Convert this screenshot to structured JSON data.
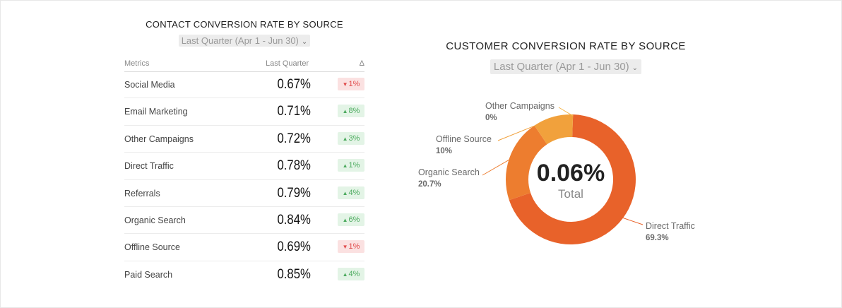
{
  "left": {
    "title": "CONTACT CONVERSION RATE BY SOURCE",
    "period": "Last Quarter (Apr 1 - Jun 30)",
    "columns": {
      "metric": "Metrics",
      "last": "Last Quarter",
      "delta": "Δ"
    },
    "rows": [
      {
        "label": "Social Media",
        "value": "0.67%",
        "delta": "1%",
        "dir": "down"
      },
      {
        "label": "Email Marketing",
        "value": "0.71%",
        "delta": "8%",
        "dir": "up"
      },
      {
        "label": "Other Campaigns",
        "value": "0.72%",
        "delta": "3%",
        "dir": "up"
      },
      {
        "label": "Direct Traffic",
        "value": "0.78%",
        "delta": "1%",
        "dir": "up"
      },
      {
        "label": "Referrals",
        "value": "0.79%",
        "delta": "4%",
        "dir": "up"
      },
      {
        "label": "Organic Search",
        "value": "0.84%",
        "delta": "6%",
        "dir": "up"
      },
      {
        "label": "Offline Source",
        "value": "0.69%",
        "delta": "1%",
        "dir": "down"
      },
      {
        "label": "Paid Search",
        "value": "0.85%",
        "delta": "4%",
        "dir": "up"
      }
    ],
    "arrow_up": "▲",
    "arrow_down": "▼"
  },
  "right": {
    "title": "CUSTOMER CONVERSION RATE BY SOURCE",
    "period": "Last Quarter (Apr 1 - Jun 30)",
    "center_value": "0.06%",
    "center_label": "Total"
  },
  "chevron_icon": "chevron-down-icon",
  "colors": {
    "up_bg": "#e3f4e6",
    "up_fg": "#4caa5e",
    "down_bg": "#fbe1e1",
    "down_fg": "#e04a4a"
  },
  "chart_data": {
    "type": "pie",
    "variant": "donut",
    "title": "CUSTOMER CONVERSION RATE BY SOURCE",
    "slices": [
      {
        "label": "Direct Traffic",
        "pct_label": "69.3%",
        "value": 69.3,
        "color": "#e8622a"
      },
      {
        "label": "Organic Search",
        "pct_label": "20.7%",
        "value": 20.7,
        "color": "#ed7d2f"
      },
      {
        "label": "Offline Source",
        "pct_label": "10%",
        "value": 10,
        "color": "#f1a13c"
      },
      {
        "label": "Other Campaigns",
        "pct_label": "0%",
        "value": 0,
        "color": "#f4b54a"
      }
    ]
  }
}
